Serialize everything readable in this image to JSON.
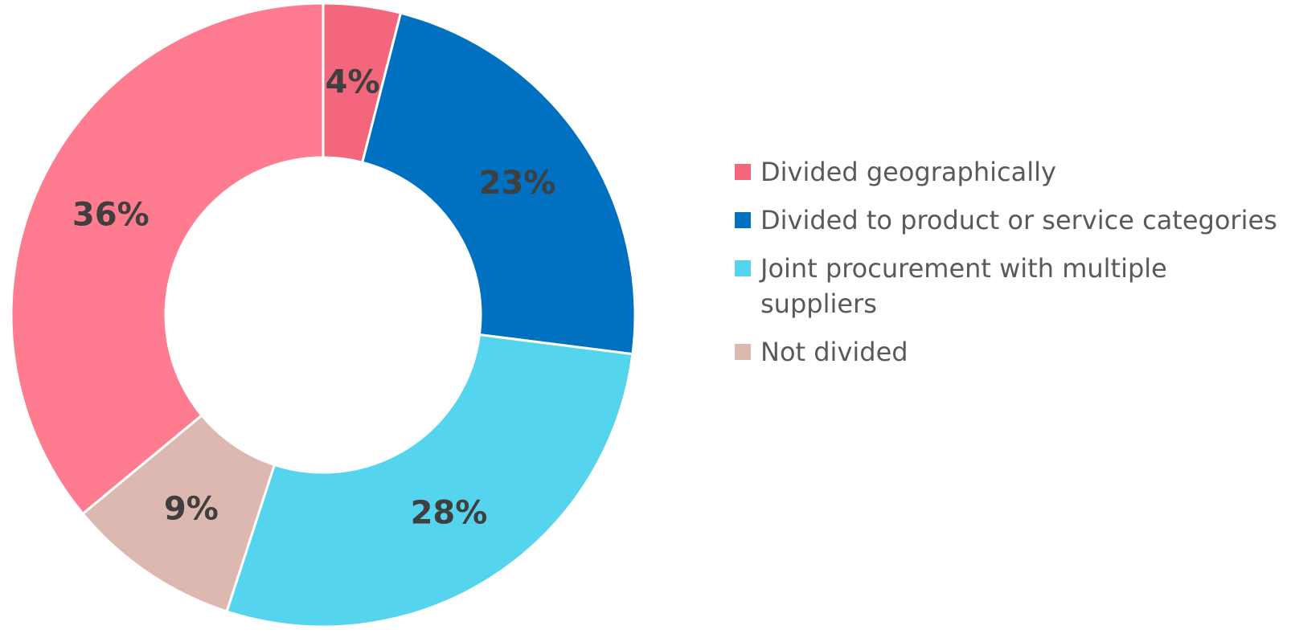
{
  "chart_data": {
    "type": "pie",
    "donut": true,
    "title": "",
    "categories": [
      "Divided geographically",
      "Divided to product or service categories",
      "Joint procurement with multiple suppliers",
      "Not divided",
      ""
    ],
    "values": [
      4,
      23,
      28,
      9,
      36
    ],
    "labels": [
      "4%",
      "23%",
      "28%",
      "9%",
      "36%"
    ],
    "colors": [
      "#f4667c",
      "#0070c0",
      "#55d4ee",
      "#ddb8b0",
      "#ff7c90"
    ],
    "legend_placement": "right",
    "start_angle": "12 o'clock",
    "direction": "clockwise"
  }
}
